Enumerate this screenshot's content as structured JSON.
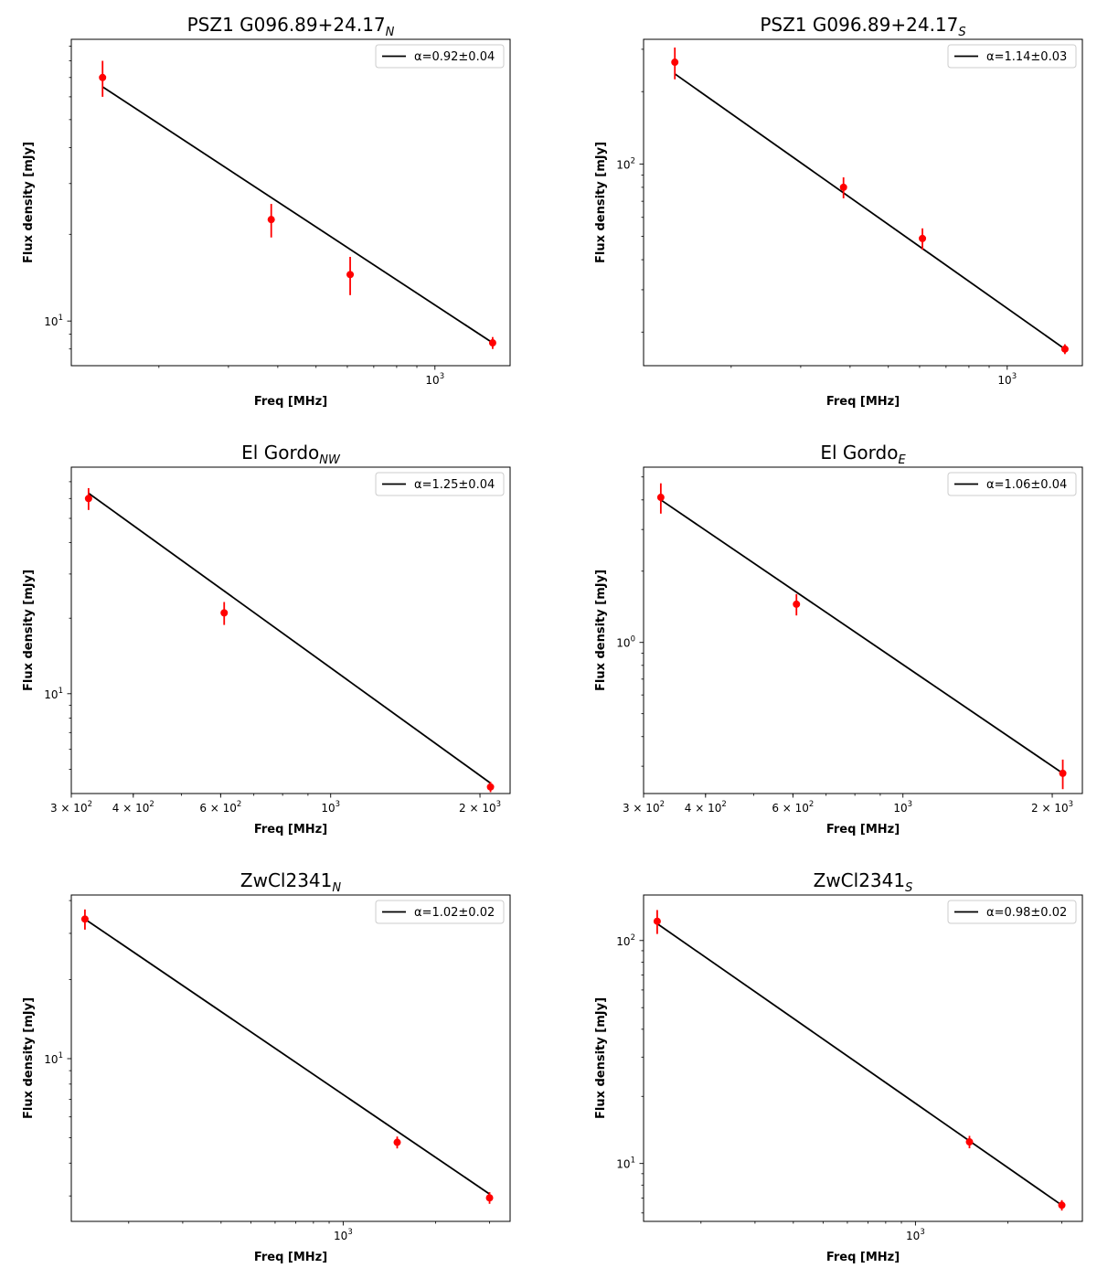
{
  "chart_data": [
    {
      "type": "scatter",
      "title_main": "PSZ1 G096.89+24.17",
      "title_sub": "N",
      "xlabel": "Freq [MHz]",
      "ylabel": "Flux density [mJy]",
      "x_scale": "log",
      "y_scale": "log",
      "xlim": [
        120,
        1550
      ],
      "ylim": [
        7.0,
        95
      ],
      "x_ticks": [
        {
          "value": 1000,
          "label": "10",
          "exp": "3"
        }
      ],
      "y_ticks": [
        {
          "value": 10,
          "label": "10",
          "exp": "1"
        }
      ],
      "points": [
        {
          "x": 144,
          "y": 70,
          "err": 10
        },
        {
          "x": 385,
          "y": 22.5,
          "err": 3
        },
        {
          "x": 610,
          "y": 14.5,
          "err": 2.2
        },
        {
          "x": 1400,
          "y": 8.4,
          "err": 0.4
        }
      ],
      "fit": {
        "x": [
          144,
          1400
        ],
        "y": [
          65,
          8.4
        ]
      },
      "legend": {
        "label": "α=0.92±0.04",
        "position": "top-right"
      }
    },
    {
      "type": "scatter",
      "title_main": "PSZ1 G096.89+24.17",
      "title_sub": "S",
      "xlabel": "Freq [MHz]",
      "ylabel": "Flux density [mJy]",
      "x_scale": "log",
      "y_scale": "log",
      "xlim": [
        120,
        1550
      ],
      "ylim": [
        14.5,
        330
      ],
      "x_ticks": [
        {
          "value": 1000,
          "label": "10",
          "exp": "3"
        }
      ],
      "y_ticks": [
        {
          "value": 100,
          "label": "10",
          "exp": "2"
        }
      ],
      "points": [
        {
          "x": 144,
          "y": 265,
          "err": 40
        },
        {
          "x": 385,
          "y": 80,
          "err": 8
        },
        {
          "x": 610,
          "y": 49,
          "err": 5
        },
        {
          "x": 1400,
          "y": 17,
          "err": 0.8
        }
      ],
      "fit": {
        "x": [
          144,
          1400
        ],
        "y": [
          237,
          17
        ]
      },
      "legend": {
        "label": "α=1.14±0.03",
        "position": "top-right"
      }
    },
    {
      "type": "scatter",
      "title_main": "El Gordo",
      "title_sub": "NW",
      "xlabel": "Freq [MHz]",
      "ylabel": "Flux density [mJy]",
      "x_scale": "log",
      "y_scale": "log",
      "xlim": [
        300,
        2300
      ],
      "ylim": [
        4.0,
        80
      ],
      "x_ticks": [
        {
          "value": 300,
          "label": "3 × 10",
          "exp": "2"
        },
        {
          "value": 400,
          "label": "4 × 10",
          "exp": "2"
        },
        {
          "value": 600,
          "label": "6 × 10",
          "exp": "2"
        },
        {
          "value": 1000,
          "label": "10",
          "exp": "3"
        },
        {
          "value": 2000,
          "label": "2 × 10",
          "exp": "3"
        }
      ],
      "y_ticks": [
        {
          "value": 10,
          "label": "10",
          "exp": "1"
        }
      ],
      "points": [
        {
          "x": 325,
          "y": 60,
          "err": 6
        },
        {
          "x": 610,
          "y": 21,
          "err": 2.2
        },
        {
          "x": 2100,
          "y": 4.25,
          "err": 0.2
        }
      ],
      "fit": {
        "x": [
          325,
          2100
        ],
        "y": [
          63,
          4.4
        ]
      },
      "legend": {
        "label": "α=1.25±0.04",
        "position": "top-right"
      }
    },
    {
      "type": "scatter",
      "title_main": "El Gordo",
      "title_sub": "E",
      "xlabel": "Freq [MHz]",
      "ylabel": "Flux density [mJy]",
      "x_scale": "log",
      "y_scale": "log",
      "xlim": [
        300,
        2300
      ],
      "ylim": [
        0.23,
        5.5
      ],
      "x_ticks": [
        {
          "value": 300,
          "label": "3 × 10",
          "exp": "2"
        },
        {
          "value": 400,
          "label": "4 × 10",
          "exp": "2"
        },
        {
          "value": 600,
          "label": "6 × 10",
          "exp": "2"
        },
        {
          "value": 1000,
          "label": "10",
          "exp": "3"
        },
        {
          "value": 2000,
          "label": "2 × 10",
          "exp": "3"
        }
      ],
      "y_ticks": [
        {
          "value": 1,
          "label": "10",
          "exp": "0"
        }
      ],
      "points": [
        {
          "x": 325,
          "y": 4.1,
          "err": 0.6
        },
        {
          "x": 610,
          "y": 1.45,
          "err": 0.15
        },
        {
          "x": 2100,
          "y": 0.28,
          "err": 0.04
        }
      ],
      "fit": {
        "x": [
          325,
          2100
        ],
        "y": [
          4.0,
          0.28
        ]
      },
      "legend": {
        "label": "α=1.06±0.04",
        "position": "top-right"
      }
    },
    {
      "type": "scatter",
      "title_main": "ZwCl2341",
      "title_sub": "N",
      "xlabel": "Freq [MHz]",
      "ylabel": "Flux density [mJy]",
      "x_scale": "log",
      "y_scale": "log",
      "xlim": [
        130,
        3500
      ],
      "ylim": [
        2.4,
        42
      ],
      "x_ticks": [
        {
          "value": 1000,
          "label": "10",
          "exp": "3"
        }
      ],
      "y_ticks": [
        {
          "value": 10,
          "label": "10",
          "exp": "1"
        }
      ],
      "points": [
        {
          "x": 144,
          "y": 34,
          "err": 3
        },
        {
          "x": 1500,
          "y": 4.8,
          "err": 0.25
        },
        {
          "x": 3000,
          "y": 2.95,
          "err": 0.15
        }
      ],
      "fit": {
        "x": [
          144,
          3000
        ],
        "y": [
          34,
          3.05
        ]
      },
      "legend": {
        "label": "α=1.02±0.02",
        "position": "top-right"
      }
    },
    {
      "type": "scatter",
      "title_main": "ZwCl2341",
      "title_sub": "S",
      "xlabel": "Freq [MHz]",
      "ylabel": "Flux density [mJy]",
      "x_scale": "log",
      "y_scale": "log",
      "xlim": [
        130,
        3500
      ],
      "ylim": [
        5.5,
        160
      ],
      "x_ticks": [
        {
          "value": 1000,
          "label": "10",
          "exp": "3"
        }
      ],
      "y_ticks": [
        {
          "value": 10,
          "label": "10",
          "exp": "1"
        },
        {
          "value": 100,
          "label": "10",
          "exp": "2"
        }
      ],
      "points": [
        {
          "x": 144,
          "y": 122,
          "err": 15
        },
        {
          "x": 1500,
          "y": 12.5,
          "err": 0.8
        },
        {
          "x": 3000,
          "y": 6.5,
          "err": 0.35
        }
      ],
      "fit": {
        "x": [
          144,
          3000
        ],
        "y": [
          119,
          6.5
        ]
      },
      "legend": {
        "label": "α=0.98±0.02",
        "position": "top-right"
      }
    }
  ],
  "colors": {
    "points": "#ff0000",
    "fit": "#000000",
    "axes": "#000000",
    "background": "#ffffff"
  }
}
